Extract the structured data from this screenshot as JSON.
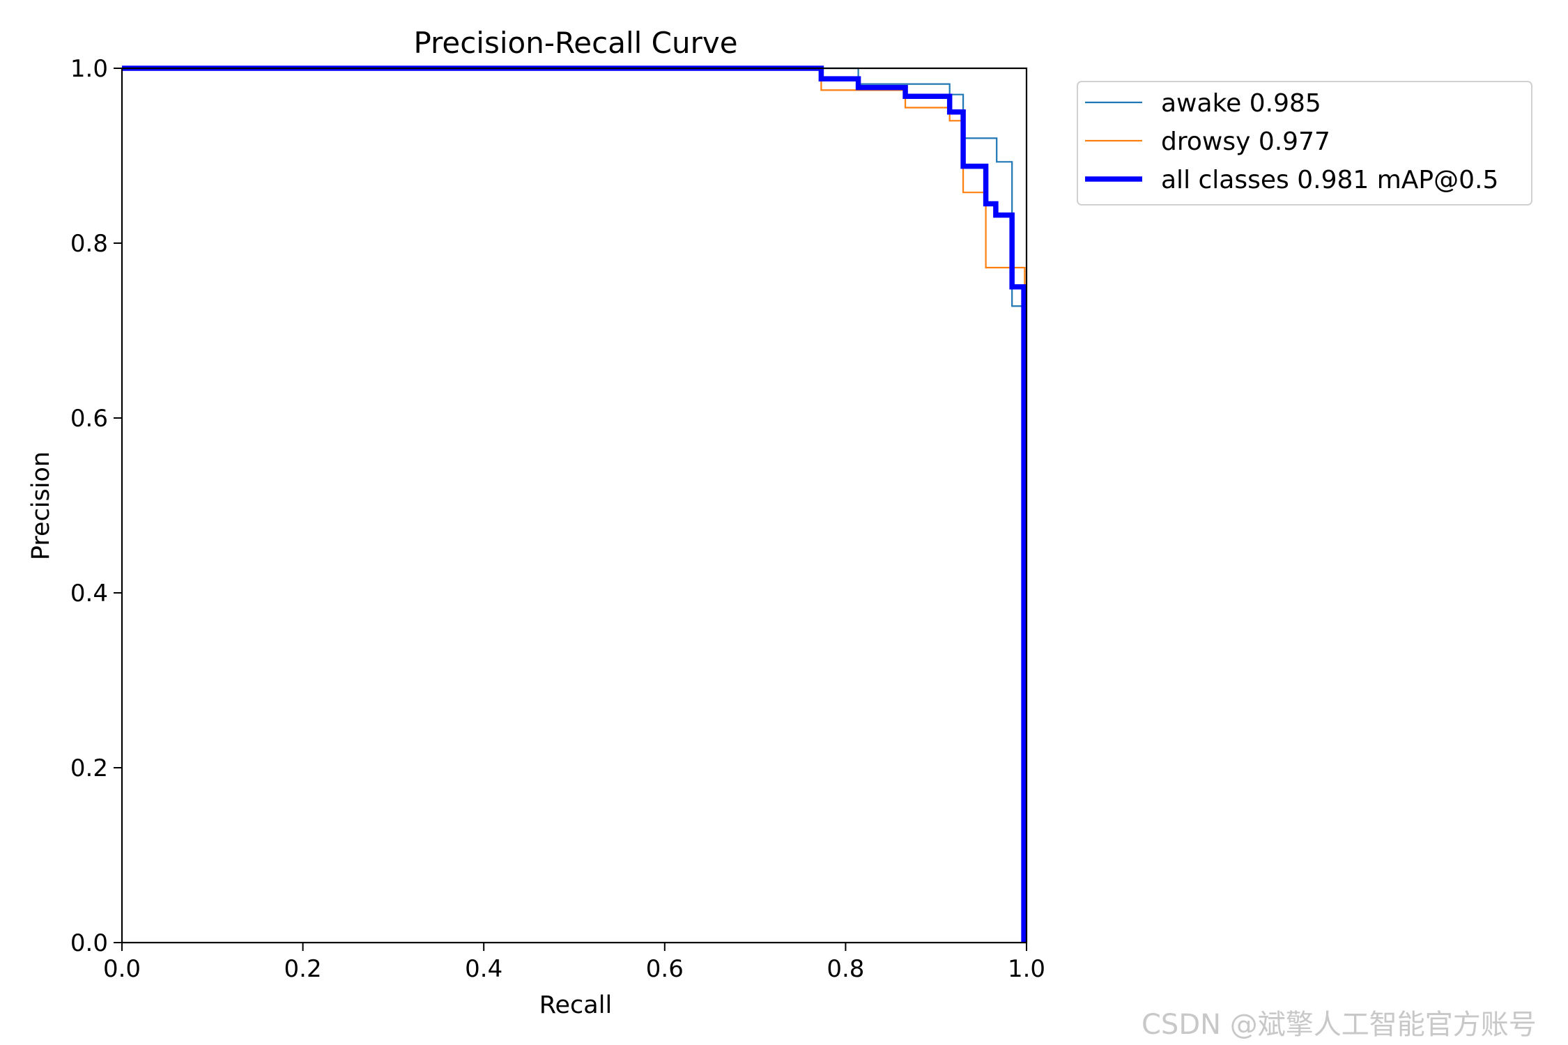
{
  "chart_data": {
    "type": "line",
    "title": "Precision-Recall Curve",
    "xlabel": "Recall",
    "ylabel": "Precision",
    "xlim": [
      0,
      1
    ],
    "ylim": [
      0,
      1
    ],
    "xticks": [
      "0.0",
      "0.2",
      "0.4",
      "0.6",
      "0.8",
      "1.0"
    ],
    "yticks": [
      "0.0",
      "0.2",
      "0.4",
      "0.6",
      "0.8",
      "1.0"
    ],
    "grid": false,
    "legend_position": "outside-right-top",
    "series": [
      {
        "name": "awake 0.985",
        "color": "#1f77b4",
        "points": [
          [
            0,
            1
          ],
          [
            0.814,
            1
          ],
          [
            0.814,
            0.982
          ],
          [
            0.915,
            0.982
          ],
          [
            0.915,
            0.97
          ],
          [
            0.93,
            0.97
          ],
          [
            0.93,
            0.92
          ],
          [
            0.967,
            0.92
          ],
          [
            0.967,
            0.893
          ],
          [
            0.984,
            0.893
          ],
          [
            0.984,
            0.728
          ],
          [
            0.997,
            0.728
          ],
          [
            0.997,
            0
          ]
        ]
      },
      {
        "name": "drowsy 0.977",
        "color": "#ff7f0e",
        "points": [
          [
            0,
            1
          ],
          [
            0.773,
            1
          ],
          [
            0.773,
            0.975
          ],
          [
            0.866,
            0.975
          ],
          [
            0.866,
            0.955
          ],
          [
            0.915,
            0.955
          ],
          [
            0.915,
            0.94
          ],
          [
            0.93,
            0.94
          ],
          [
            0.93,
            0.858
          ],
          [
            0.955,
            0.858
          ],
          [
            0.955,
            0.772
          ],
          [
            0.998,
            0.772
          ],
          [
            0.998,
            0
          ]
        ]
      },
      {
        "name": "all classes 0.981 mAP@0.5",
        "color": "#0000ff",
        "points": [
          [
            0,
            1
          ],
          [
            0.773,
            1
          ],
          [
            0.773,
            0.988
          ],
          [
            0.814,
            0.988
          ],
          [
            0.814,
            0.978
          ],
          [
            0.866,
            0.978
          ],
          [
            0.866,
            0.968
          ],
          [
            0.915,
            0.968
          ],
          [
            0.915,
            0.95
          ],
          [
            0.93,
            0.95
          ],
          [
            0.93,
            0.888
          ],
          [
            0.955,
            0.888
          ],
          [
            0.955,
            0.845
          ],
          [
            0.966,
            0.845
          ],
          [
            0.966,
            0.832
          ],
          [
            0.984,
            0.832
          ],
          [
            0.984,
            0.75
          ],
          [
            0.997,
            0.75
          ],
          [
            0.997,
            0
          ]
        ]
      }
    ]
  },
  "watermark": "CSDN @斌擎人工智能官方账号"
}
